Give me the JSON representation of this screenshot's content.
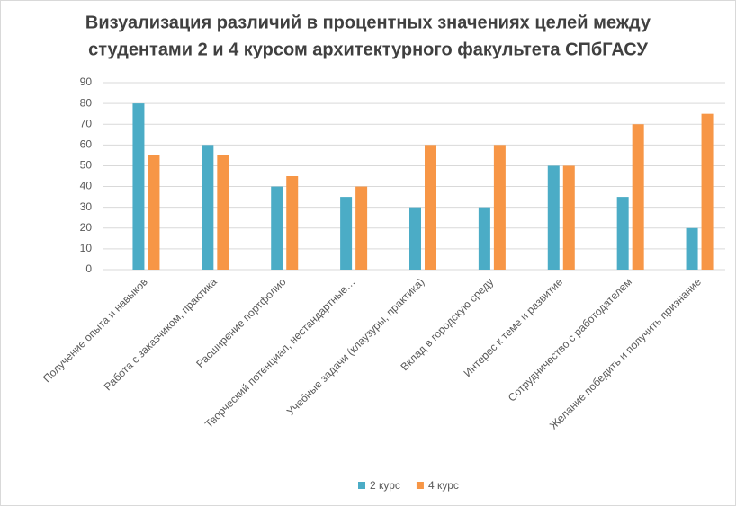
{
  "chart_data": {
    "type": "bar",
    "title": [
      "Визуализация различий в процентных значениях целей между",
      "студентами 2 и 4 курсом архитектурного факультета СПбГАСУ"
    ],
    "categories": [
      "Получение опыта и навыков",
      "Работа с заказчиком, практика",
      "Расширение портфолио",
      "Творческий потенциал, нестандартные…",
      "Учебные задачи (клаузуры, практика)",
      "Вклад в городскую среду",
      "Интерес к теме и развитие",
      "Сотрудничество с работодателем",
      "Желание победить и получить признание"
    ],
    "series": [
      {
        "name": "2 курс",
        "color": "#4bacc6",
        "values": [
          80,
          60,
          40,
          35,
          30,
          30,
          50,
          35,
          20
        ]
      },
      {
        "name": "4 курс",
        "color": "#f79646",
        "values": [
          55,
          55,
          45,
          40,
          60,
          60,
          50,
          70,
          75
        ]
      }
    ],
    "ylim": [
      0,
      90
    ],
    "yticks": [
      0,
      10,
      20,
      30,
      40,
      50,
      60,
      70,
      80,
      90
    ],
    "grid": true,
    "legend": "bottom"
  }
}
